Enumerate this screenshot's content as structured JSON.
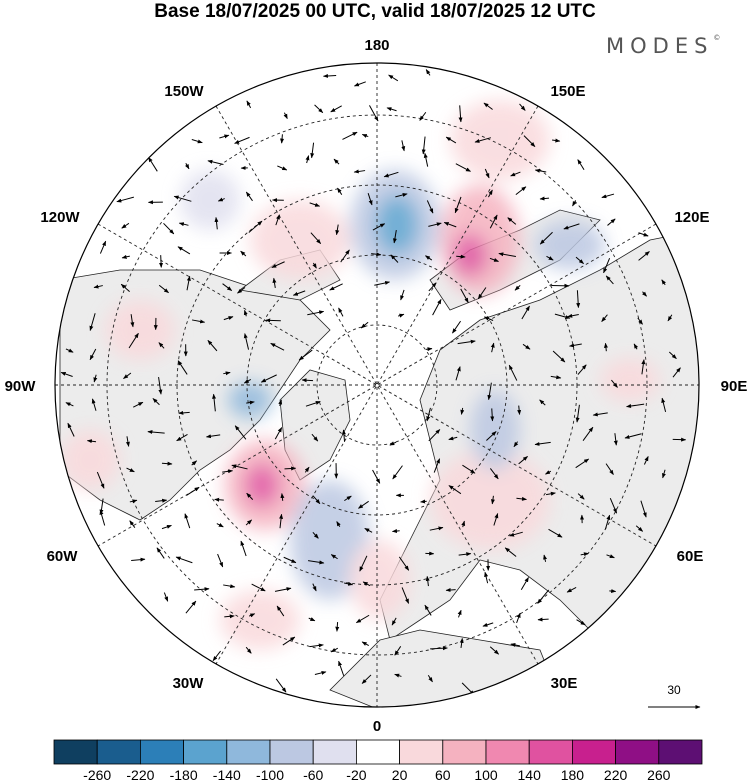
{
  "header": {
    "title": "Base 18/07/2025 00 UTC, valid 18/07/2025 12 UTC",
    "brand": "MODES",
    "brand_mark": "©"
  },
  "map": {
    "projection": "north polar stereographic",
    "meridian_labels": [
      "180",
      "150E",
      "120E",
      "90E",
      "60E",
      "30E",
      "0",
      "30W",
      "60W",
      "90W",
      "120W",
      "150W"
    ],
    "grid": true,
    "land_color": "#ececec",
    "ocean_color": "#ffffff"
  },
  "vector_legend": {
    "reference_value": "30"
  },
  "colorbar": {
    "colors": [
      "#0f3f60",
      "#1a5d8e",
      "#2c7fb8",
      "#5ba3cf",
      "#8fb8dc",
      "#bcc8e2",
      "#e0e0ef",
      "#ffffff",
      "#f9d9dc",
      "#f5b2c0",
      "#f088b0",
      "#e052a0",
      "#c8208e",
      "#8f0f85",
      "#5d0f73"
    ],
    "tick_labels": [
      "-260",
      "-220",
      "-180",
      "-140",
      "-100",
      "-60",
      "-20",
      "20",
      "60",
      "100",
      "140",
      "180",
      "220",
      "260"
    ]
  }
}
